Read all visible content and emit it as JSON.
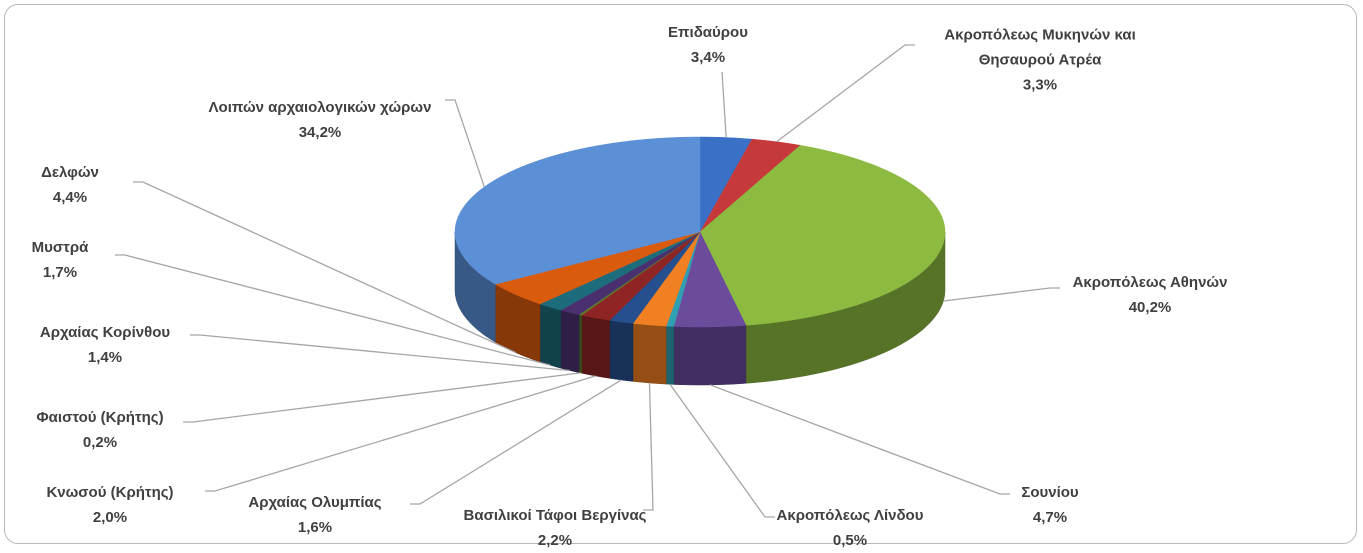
{
  "chart_data": {
    "type": "pie3d",
    "categories": [
      "Επιδαύρου",
      "Ακροπόλεως Μυκηνών και Θησαυρού Ατρέα",
      "Ακροπόλεως Αθηνών",
      "Σουνίου",
      "Ακροπόλεως Λίνδου",
      "Βασιλικοί Τάφοι Βεργίνας",
      "Αρχαίας Ολυμπίας",
      "Κνωσού (Κρήτης)",
      "Φαιστού (Κρήτης)",
      "Αρχαίας Κορίνθου",
      "Μυστρά",
      "Δελφών",
      "Λοιπών αρχαιολογικών χώρων"
    ],
    "values": [
      3.4,
      3.3,
      40.2,
      4.7,
      0.5,
      2.2,
      1.6,
      2.0,
      0.2,
      1.4,
      1.7,
      4.4,
      34.2
    ],
    "value_labels": [
      "3,4%",
      "3,3%",
      "40,2%",
      "4,7%",
      "0,5%",
      "2,2%",
      "1,6%",
      "2,0%",
      "0,2%",
      "1,4%",
      "1,7%",
      "4,4%",
      "34,2%"
    ],
    "colors": [
      "#3a70c6",
      "#c6393b",
      "#8dba40",
      "#6b4b9c",
      "#2f9fb2",
      "#f08022",
      "#264f8e",
      "#8e2424",
      "#5c7c2b",
      "#4b306f",
      "#1d6c7b",
      "#d85b0e",
      "#5b8fd6"
    ]
  }
}
